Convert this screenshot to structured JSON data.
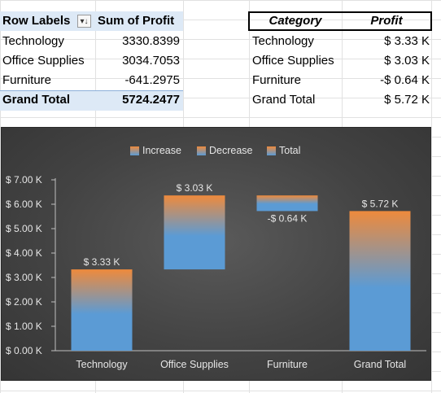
{
  "pivot": {
    "headers": [
      "Row Labels",
      "Sum of Profit"
    ],
    "filter_icon": "filter-dropdown-icon",
    "rows": [
      {
        "label": "Technology",
        "value": "3330.8399"
      },
      {
        "label": "Office Supplies",
        "value": "3034.7053"
      },
      {
        "label": "Furniture",
        "value": "-641.2975"
      }
    ],
    "total": {
      "label": "Grand Total",
      "value": "5724.2477"
    }
  },
  "summary": {
    "headers": [
      "Category",
      "Profit"
    ],
    "rows": [
      {
        "label": "Technology",
        "value": "$ 3.33 K"
      },
      {
        "label": "Office Supplies",
        "value": "$ 3.03 K"
      },
      {
        "label": "Furniture",
        "value": "-$ 0.64 K"
      },
      {
        "label": "Grand Total",
        "value": "$ 5.72 K"
      }
    ]
  },
  "chart_data": {
    "type": "bar",
    "subtype": "waterfall",
    "legend": [
      "Increase",
      "Decrease",
      "Total"
    ],
    "legend_position": "top",
    "categories": [
      "Technology",
      "Office Supplies",
      "Furniture",
      "Grand Total"
    ],
    "bars": [
      {
        "category": "Technology",
        "base": 0,
        "top": 3.33,
        "label": "$ 3.33 K",
        "kind": "increase"
      },
      {
        "category": "Office Supplies",
        "base": 3.33,
        "top": 6.36,
        "label": "$ 3.03 K",
        "kind": "increase"
      },
      {
        "category": "Furniture",
        "base": 5.72,
        "top": 6.36,
        "label": "-$ 0.64 K",
        "kind": "decrease"
      },
      {
        "category": "Grand Total",
        "base": 0,
        "top": 5.72,
        "label": "$ 5.72 K",
        "kind": "total"
      }
    ],
    "y_ticks": [
      "$ 0.00 K",
      "$ 1.00 K",
      "$ 2.00 K",
      "$ 3.00 K",
      "$ 4.00 K",
      "$ 5.00 K",
      "$ 6.00 K",
      "$ 7.00 K"
    ],
    "ylim": [
      0,
      7
    ],
    "grid": false,
    "colors": {
      "top": "#ee8a3c",
      "bottom": "#5b9bd5",
      "background": "#434343",
      "text": "#e6e6e6"
    }
  }
}
